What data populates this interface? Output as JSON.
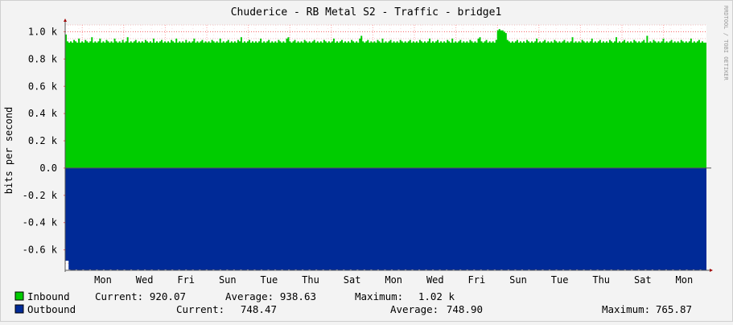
{
  "chart_data": {
    "type": "area",
    "title": "Chuderice - RB Metal S2 - Traffic - bridge1",
    "ylabel": "bits per second",
    "watermark": "RRDTOOL / TOBI OETIKER",
    "ylim": [
      -0.75,
      1.05
    ],
    "y_ticks": [
      {
        "value": 1.0,
        "label": "1.0 k"
      },
      {
        "value": 0.8,
        "label": "0.8 k"
      },
      {
        "value": 0.6,
        "label": "0.6 k"
      },
      {
        "value": 0.4,
        "label": "0.4 k"
      },
      {
        "value": 0.2,
        "label": "0.2 k"
      },
      {
        "value": 0.0,
        "label": "0.0"
      },
      {
        "value": -0.2,
        "label": "-0.2 k"
      },
      {
        "value": -0.4,
        "label": "-0.4 k"
      },
      {
        "value": -0.6,
        "label": "-0.6 k"
      }
    ],
    "x_ticks": [
      "Mon",
      "Wed",
      "Fri",
      "Sun",
      "Tue",
      "Thu",
      "Sat",
      "Mon",
      "Wed",
      "Fri",
      "Sun",
      "Tue",
      "Thu",
      "Sat",
      "Mon"
    ],
    "series": [
      {
        "name": "Inbound",
        "color": "#00cc00",
        "unit": "k",
        "values": [
          0.98,
          0.93,
          0.92,
          0.93,
          0.92,
          0.94,
          0.93,
          0.92,
          0.95,
          0.92,
          0.93,
          0.92,
          0.94,
          0.93,
          0.92,
          0.93,
          0.96,
          0.92,
          0.93,
          0.92,
          0.93,
          0.95,
          0.92,
          0.93,
          0.92,
          0.94,
          0.93,
          0.92,
          0.93,
          0.92,
          0.95,
          0.93,
          0.92,
          0.93,
          0.92,
          0.94,
          0.92,
          0.93,
          0.96,
          0.92,
          0.93,
          0.92,
          0.93,
          0.94,
          0.92,
          0.93,
          0.92,
          0.93,
          0.92,
          0.94,
          0.93,
          0.92,
          0.93,
          0.92,
          0.95,
          0.92,
          0.93,
          0.92,
          0.93,
          0.94,
          0.92,
          0.93,
          0.92,
          0.93,
          0.92,
          0.94,
          0.93,
          0.92,
          0.95,
          0.92,
          0.93,
          0.92,
          0.93,
          0.92,
          0.94,
          0.92,
          0.93,
          0.92,
          0.93,
          0.95,
          0.92,
          0.93,
          0.92,
          0.93,
          0.94,
          0.92,
          0.93,
          0.92,
          0.93,
          0.92,
          0.94,
          0.93,
          0.92,
          0.93,
          0.92,
          0.95,
          0.92,
          0.93,
          0.92,
          0.93,
          0.94,
          0.92,
          0.93,
          0.92,
          0.93,
          0.92,
          0.94,
          0.93,
          0.96,
          0.92,
          0.93,
          0.92,
          0.93,
          0.94,
          0.92,
          0.93,
          0.92,
          0.93,
          0.92,
          0.93,
          0.95,
          0.92,
          0.93,
          0.92,
          0.93,
          0.94,
          0.92,
          0.93,
          0.92,
          0.93,
          0.92,
          0.94,
          0.93,
          0.92,
          0.93,
          0.92,
          0.95,
          0.96,
          0.93,
          0.92,
          0.93,
          0.94,
          0.92,
          0.93,
          0.92,
          0.93,
          0.92,
          0.94,
          0.93,
          0.92,
          0.93,
          0.92,
          0.93,
          0.94,
          0.92,
          0.93,
          0.92,
          0.93,
          0.92,
          0.94,
          0.93,
          0.92,
          0.93,
          0.92,
          0.93,
          0.95,
          0.92,
          0.93,
          0.92,
          0.93,
          0.94,
          0.92,
          0.93,
          0.92,
          0.93,
          0.92,
          0.94,
          0.93,
          0.92,
          0.93,
          0.92,
          0.95,
          0.97,
          0.93,
          0.92,
          0.93,
          0.94,
          0.92,
          0.93,
          0.92,
          0.93,
          0.92,
          0.94,
          0.93,
          0.92,
          0.95,
          0.92,
          0.93,
          0.92,
          0.93,
          0.94,
          0.92,
          0.93,
          0.92,
          0.93,
          0.92,
          0.94,
          0.93,
          0.92,
          0.93,
          0.92,
          0.93,
          0.94,
          0.92,
          0.93,
          0.92,
          0.93,
          0.92,
          0.94,
          0.93,
          0.92,
          0.93,
          0.92,
          0.93,
          0.95,
          0.92,
          0.93,
          0.92,
          0.93,
          0.94,
          0.92,
          0.93,
          0.92,
          0.93,
          0.92,
          0.94,
          0.93,
          0.92,
          0.95,
          0.92,
          0.93,
          0.92,
          0.93,
          0.94,
          0.92,
          0.93,
          0.92,
          0.93,
          0.92,
          0.94,
          0.93,
          0.92,
          0.93,
          0.92,
          0.95,
          0.96,
          0.93,
          0.92,
          0.93,
          0.94,
          0.92,
          0.93,
          0.92,
          0.93,
          0.92,
          0.94,
          1.01,
          1.02,
          1.01,
          1.01,
          1.0,
          0.99,
          0.94,
          0.93,
          0.92,
          0.93,
          0.92,
          0.93,
          0.94,
          0.92,
          0.93,
          0.92,
          0.93,
          0.92,
          0.94,
          0.93,
          0.92,
          0.93,
          0.92,
          0.93,
          0.95,
          0.92,
          0.93,
          0.92,
          0.93,
          0.94,
          0.92,
          0.93,
          0.92,
          0.93,
          0.92,
          0.94,
          0.93,
          0.92,
          0.93,
          0.92,
          0.93,
          0.94,
          0.92,
          0.93,
          0.92,
          0.93,
          0.96,
          0.92,
          0.93,
          0.92,
          0.93,
          0.92,
          0.94,
          0.93,
          0.92,
          0.93,
          0.92,
          0.93,
          0.95,
          0.92,
          0.93,
          0.92,
          0.93,
          0.94,
          0.92,
          0.93,
          0.92,
          0.93,
          0.92,
          0.94,
          0.93,
          0.92,
          0.93,
          0.96,
          0.92,
          0.93,
          0.92,
          0.93,
          0.94,
          0.92,
          0.93,
          0.92,
          0.93,
          0.92,
          0.94,
          0.93,
          0.92,
          0.93,
          0.92,
          0.93,
          0.94,
          0.92,
          0.97,
          0.92,
          0.93,
          0.92,
          0.94,
          0.93,
          0.92,
          0.93,
          0.92,
          0.93,
          0.95,
          0.92,
          0.93,
          0.92,
          0.93,
          0.94,
          0.92,
          0.93,
          0.92,
          0.93,
          0.92,
          0.94,
          0.93,
          0.92,
          0.93,
          0.92,
          0.93,
          0.95,
          0.92,
          0.93,
          0.92,
          0.93,
          0.94,
          0.92,
          0.93,
          0.92,
          0.92
        ],
        "legend": {
          "current": "920.07",
          "average": "938.63",
          "maximum": "1.02 k"
        }
      },
      {
        "name": "Outbound",
        "color": "#002a97",
        "unit": "k",
        "values": [
          -0.68,
          -0.68,
          -0.745,
          -0.75,
          -0.748,
          -0.75,
          -0.745,
          -0.75,
          -0.748,
          -0.75,
          -0.745,
          -0.75,
          -0.748,
          -0.75,
          -0.745,
          -0.75,
          -0.748,
          -0.75,
          -0.745,
          -0.75,
          -0.748,
          -0.75,
          -0.745,
          -0.75,
          -0.748,
          -0.75,
          -0.745,
          -0.75,
          -0.748,
          -0.75,
          -0.745,
          -0.75,
          -0.748,
          -0.75,
          -0.745,
          -0.75,
          -0.748,
          -0.75,
          -0.745,
          -0.75,
          -0.748,
          -0.75,
          -0.745,
          -0.75,
          -0.748,
          -0.75,
          -0.745,
          -0.75,
          -0.748,
          -0.75,
          -0.745,
          -0.75,
          -0.748,
          -0.75,
          -0.745,
          -0.75,
          -0.748,
          -0.75,
          -0.745,
          -0.75,
          -0.748,
          -0.75,
          -0.745,
          -0.75,
          -0.748,
          -0.75,
          -0.745,
          -0.75,
          -0.748,
          -0.75,
          -0.745,
          -0.75,
          -0.748,
          -0.75,
          -0.745,
          -0.75,
          -0.748,
          -0.75,
          -0.745,
          -0.75,
          -0.748,
          -0.75,
          -0.745,
          -0.75,
          -0.748,
          -0.75,
          -0.745,
          -0.75,
          -0.748,
          -0.75,
          -0.745,
          -0.75,
          -0.748,
          -0.75,
          -0.745,
          -0.75,
          -0.748,
          -0.75,
          -0.745,
          -0.75,
          -0.748,
          -0.75,
          -0.745,
          -0.75,
          -0.748,
          -0.75,
          -0.745,
          -0.75,
          -0.748,
          -0.75,
          -0.745,
          -0.75,
          -0.748,
          -0.75,
          -0.745,
          -0.75,
          -0.748,
          -0.75,
          -0.745,
          -0.75,
          -0.748,
          -0.75,
          -0.745,
          -0.75,
          -0.748,
          -0.75,
          -0.745,
          -0.75,
          -0.748,
          -0.75,
          -0.745,
          -0.75,
          -0.748,
          -0.75,
          -0.745,
          -0.75,
          -0.748,
          -0.75,
          -0.745,
          -0.75,
          -0.748,
          -0.75,
          -0.745,
          -0.75,
          -0.748,
          -0.75,
          -0.745,
          -0.75,
          -0.748,
          -0.75,
          -0.745,
          -0.75,
          -0.748,
          -0.75,
          -0.745,
          -0.75,
          -0.748,
          -0.75,
          -0.745,
          -0.75,
          -0.748,
          -0.75,
          -0.745,
          -0.75,
          -0.748,
          -0.75,
          -0.745,
          -0.75,
          -0.748,
          -0.75,
          -0.745,
          -0.75,
          -0.748,
          -0.75,
          -0.745,
          -0.75,
          -0.748,
          -0.75,
          -0.745,
          -0.75,
          -0.748,
          -0.75,
          -0.745,
          -0.75,
          -0.748,
          -0.75,
          -0.745,
          -0.75,
          -0.748,
          -0.75,
          -0.745,
          -0.75,
          -0.748,
          -0.75,
          -0.745,
          -0.75,
          -0.748,
          -0.75,
          -0.745,
          -0.75,
          -0.748,
          -0.75,
          -0.745,
          -0.75,
          -0.748,
          -0.75,
          -0.745,
          -0.75,
          -0.748,
          -0.75,
          -0.745,
          -0.75,
          -0.748,
          -0.75,
          -0.745,
          -0.75,
          -0.748,
          -0.75,
          -0.745,
          -0.75,
          -0.748,
          -0.75,
          -0.745,
          -0.75,
          -0.748,
          -0.75,
          -0.745,
          -0.75,
          -0.748,
          -0.75,
          -0.745,
          -0.75,
          -0.748,
          -0.75,
          -0.745,
          -0.75,
          -0.748,
          -0.75,
          -0.745,
          -0.75,
          -0.748,
          -0.75,
          -0.745,
          -0.75,
          -0.748,
          -0.75,
          -0.745,
          -0.75,
          -0.748,
          -0.75,
          -0.745,
          -0.75,
          -0.748,
          -0.75,
          -0.745,
          -0.75,
          -0.748,
          -0.75,
          -0.745,
          -0.75,
          -0.748,
          -0.75,
          -0.745,
          -0.75,
          -0.748,
          -0.75,
          -0.745,
          -0.75,
          -0.748,
          -0.75,
          -0.745,
          -0.75,
          -0.748,
          -0.75,
          -0.745,
          -0.75,
          -0.748,
          -0.75,
          -0.745,
          -0.75,
          -0.748,
          -0.75,
          -0.745,
          -0.75,
          -0.748,
          -0.75,
          -0.745,
          -0.75,
          -0.748,
          -0.75,
          -0.745,
          -0.75,
          -0.748,
          -0.75,
          -0.745,
          -0.75,
          -0.748,
          -0.75,
          -0.745,
          -0.75,
          -0.748,
          -0.75,
          -0.745,
          -0.75,
          -0.748,
          -0.75,
          -0.745,
          -0.75,
          -0.748,
          -0.75,
          -0.745,
          -0.75,
          -0.748,
          -0.75,
          -0.745,
          -0.75,
          -0.748,
          -0.75,
          -0.745,
          -0.75,
          -0.748,
          -0.75,
          -0.745,
          -0.75,
          -0.748,
          -0.75,
          -0.745,
          -0.75,
          -0.748,
          -0.75,
          -0.745,
          -0.75,
          -0.748,
          -0.75,
          -0.745,
          -0.75,
          -0.748,
          -0.75,
          -0.745,
          -0.75,
          -0.748,
          -0.75,
          -0.745,
          -0.75,
          -0.748,
          -0.75,
          -0.745,
          -0.75,
          -0.748,
          -0.75,
          -0.745,
          -0.75,
          -0.748,
          -0.75,
          -0.745,
          -0.75,
          -0.748,
          -0.75,
          -0.745,
          -0.75,
          -0.748,
          -0.75,
          -0.745,
          -0.75,
          -0.748,
          -0.75,
          -0.745,
          -0.75,
          -0.748,
          -0.75,
          -0.745,
          -0.75,
          -0.748,
          -0.75
        ],
        "legend": {
          "current": "748.47",
          "average": "748.90",
          "maximum": "765.87"
        }
      }
    ],
    "legend_labels": {
      "current": "Current:",
      "average": "Average:",
      "maximum": "Maximum:"
    },
    "grid": true,
    "background_color": "#ffffff",
    "grid_color": "#ff0000"
  }
}
